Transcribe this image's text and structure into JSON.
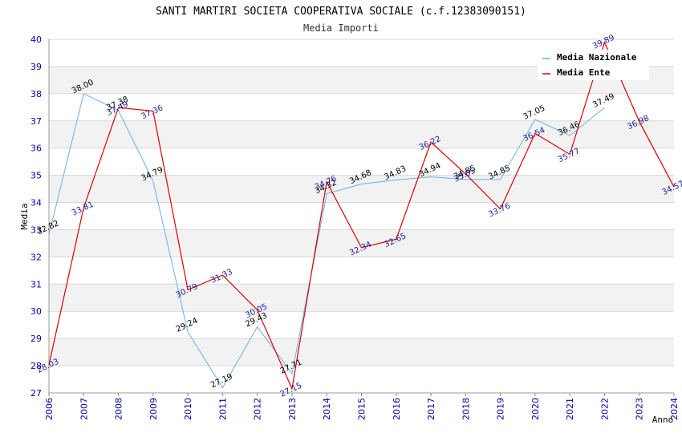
{
  "colors": {
    "nazionale": "#6aaee6",
    "ente": "#dd0000",
    "band": "#f2f2f2",
    "grid": "#d8d8d8",
    "tick": "#0000aa"
  },
  "chart_data": {
    "type": "line",
    "title": "SANTI MARTIRI SOCIETA COOPERATIVA SOCIALE (c.f.12383090151)",
    "subtitle": "Media Importi",
    "xlabel": "Anno",
    "ylabel": "Media",
    "xlim": [
      2006,
      2024
    ],
    "ylim": [
      27,
      40
    ],
    "x_ticks": [
      "2006",
      "2007",
      "2008",
      "2009",
      "2010",
      "2011",
      "2012",
      "2013",
      "2014",
      "2015",
      "2016",
      "2017",
      "2018",
      "2019",
      "2020",
      "2021",
      "2022",
      "2023",
      "2024"
    ],
    "y_ticks": [
      "27",
      "28",
      "29",
      "30",
      "31",
      "32",
      "33",
      "34",
      "35",
      "36",
      "37",
      "38",
      "39",
      "40"
    ],
    "grid": true,
    "legend_position": "top-right",
    "series": [
      {
        "name": "Media Nazionale",
        "key": "nazionale",
        "x": [
          2006,
          2007,
          2008,
          2009,
          2010,
          2011,
          2012,
          2013,
          2014,
          2015,
          2016,
          2017,
          2018,
          2019,
          2020,
          2021,
          2022
        ],
        "values": [
          32.82,
          38.0,
          37.38,
          34.79,
          29.24,
          27.19,
          29.43,
          27.71,
          34.32,
          34.68,
          34.83,
          34.94,
          34.85,
          34.85,
          37.05,
          36.46,
          37.49
        ],
        "labels": [
          "32.82",
          "38.00",
          "37.38",
          "34.79",
          "29.24",
          "27.19",
          "29.43",
          "27.71",
          "34.32",
          "34.68",
          "34.83",
          "34.94",
          "34.85",
          "34.85",
          "37.05",
          "36.46",
          "37.49"
        ]
      },
      {
        "name": "Media Ente",
        "key": "ente",
        "x": [
          2006,
          2007,
          2008,
          2009,
          2010,
          2011,
          2012,
          2013,
          2014,
          2015,
          2016,
          2017,
          2018,
          2019,
          2020,
          2021,
          2022,
          2023,
          2024
        ],
        "values": [
          28.03,
          33.81,
          37.49,
          37.36,
          30.79,
          31.33,
          30.05,
          27.15,
          34.76,
          32.34,
          32.65,
          36.22,
          35.05,
          33.76,
          36.54,
          35.77,
          39.89,
          36.98,
          34.57
        ],
        "labels": [
          "28.03",
          "33.81",
          "37.49",
          "37.36",
          "30.79",
          "31.33",
          "30.05",
          "27.15",
          "34.76",
          "32.34",
          "32.65",
          "36.22",
          "35.05",
          "33.76",
          "36.54",
          "35.77",
          "39.89",
          "36.98",
          "34.57"
        ]
      }
    ]
  }
}
